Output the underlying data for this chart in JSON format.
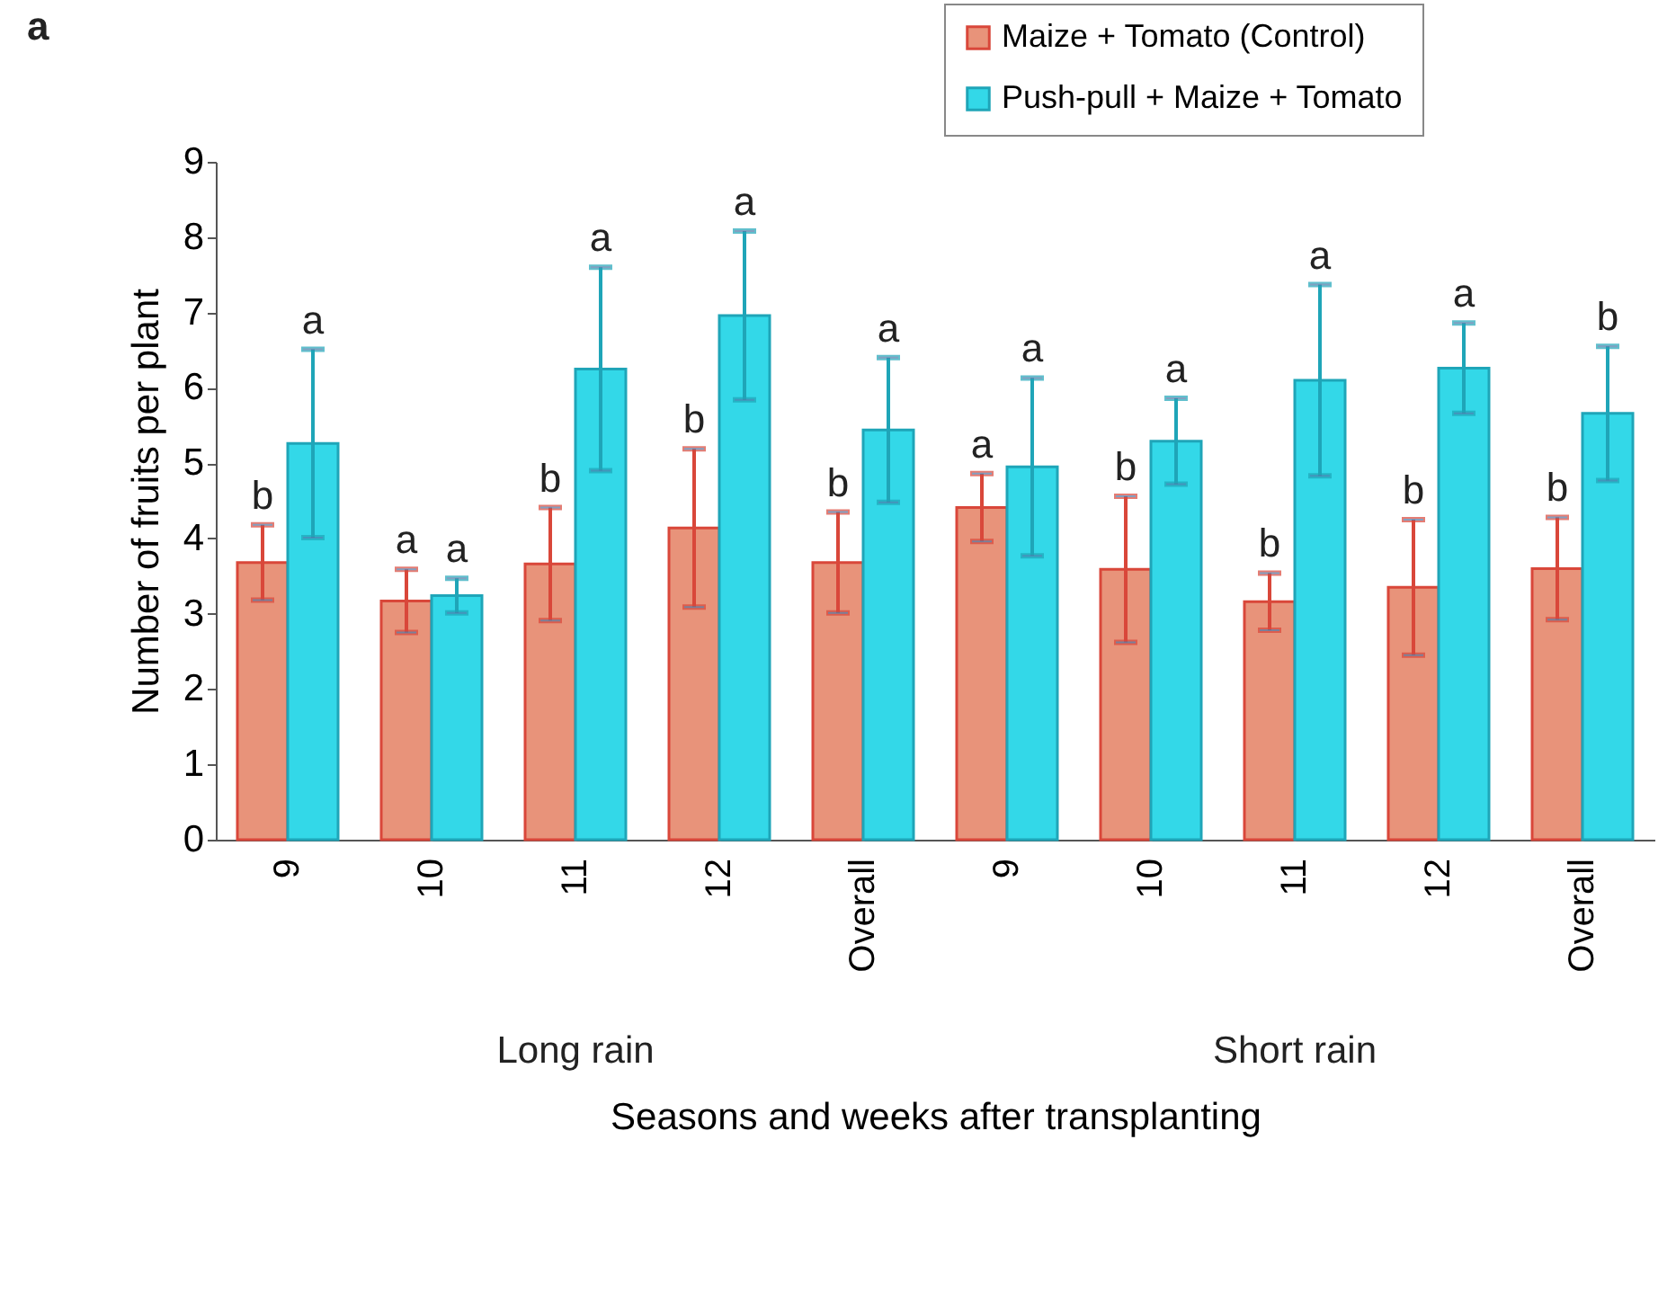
{
  "chart_data": {
    "type": "bar",
    "ylabel": "Number of fruits per plant",
    "xlabel": "Seasons and weeks after transplanting",
    "categories": [
      "9",
      "10",
      "11",
      "12",
      "Overall",
      "9",
      "10",
      "11",
      "12",
      "Overall"
    ],
    "annotations": [
      "a",
      "Long rain",
      "Short rain"
    ],
    "series": [
      {
        "name": "Maize + Tomato (Control)",
        "color": "#e8937a",
        "values": [
          3.68,
          3.17,
          3.66,
          4.14,
          3.68,
          4.41,
          3.59,
          3.16,
          3.35,
          3.6
        ],
        "errors": [
          0.5,
          0.42,
          0.75,
          1.05,
          0.67,
          0.45,
          0.97,
          0.38,
          0.9,
          0.68
        ],
        "value_labels": [
          "b",
          "a",
          "b",
          "b",
          "b",
          "a",
          "b",
          "b",
          "b",
          "b"
        ]
      },
      {
        "name": "Push-pull + Maize + Tomato",
        "color": "#33d8e8",
        "values": [
          5.26,
          3.24,
          6.25,
          6.96,
          5.44,
          4.95,
          5.29,
          6.1,
          6.26,
          5.66
        ],
        "errors": [
          1.25,
          0.23,
          1.35,
          1.12,
          0.96,
          1.18,
          0.57,
          1.27,
          0.6,
          0.89
        ],
        "value_labels": [
          "a",
          "a",
          "a",
          "a",
          "a",
          "a",
          "a",
          "a",
          "a",
          "b"
        ]
      }
    ],
    "ylim": [
      0,
      9
    ],
    "yticks": [
      0,
      1,
      2,
      3,
      4,
      5,
      6,
      7,
      8,
      9
    ],
    "grid": false,
    "legend": "top right"
  }
}
